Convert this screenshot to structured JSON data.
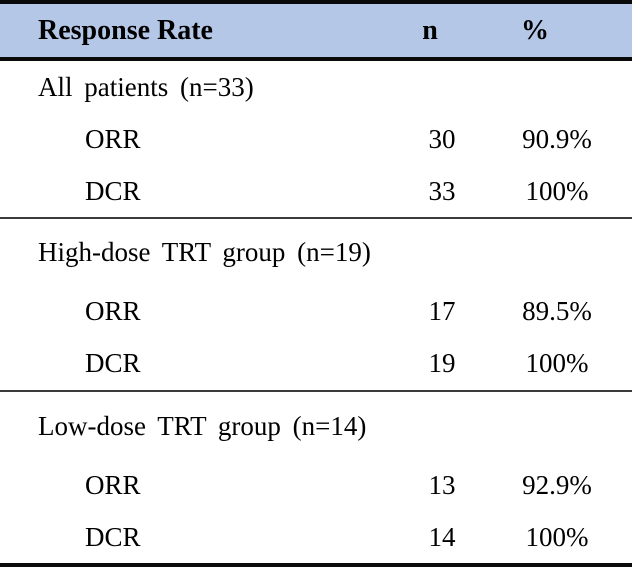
{
  "table": {
    "header": {
      "response_rate": "Response Rate",
      "n": "n",
      "percent": "%"
    },
    "sections": [
      {
        "label": "All patients (n=33)",
        "rows": [
          {
            "name": "ORR",
            "n": "30",
            "pct": "90.9%"
          },
          {
            "name": "DCR",
            "n": "33",
            "pct": "100%"
          }
        ]
      },
      {
        "label": "High-dose TRT group (n=19)",
        "rows": [
          {
            "name": "ORR",
            "n": "17",
            "pct": "89.5%"
          },
          {
            "name": "DCR",
            "n": "19",
            "pct": "100%"
          }
        ]
      },
      {
        "label": "Low-dose TRT group (n=14)",
        "rows": [
          {
            "name": "ORR",
            "n": "13",
            "pct": "92.9%"
          },
          {
            "name": "DCR",
            "n": "14",
            "pct": "100%"
          }
        ]
      }
    ],
    "colors": {
      "header_bg": "#b4c7e7",
      "border": "#0a0a0a",
      "divider": "#3a3a3a",
      "text": "#000000"
    }
  }
}
